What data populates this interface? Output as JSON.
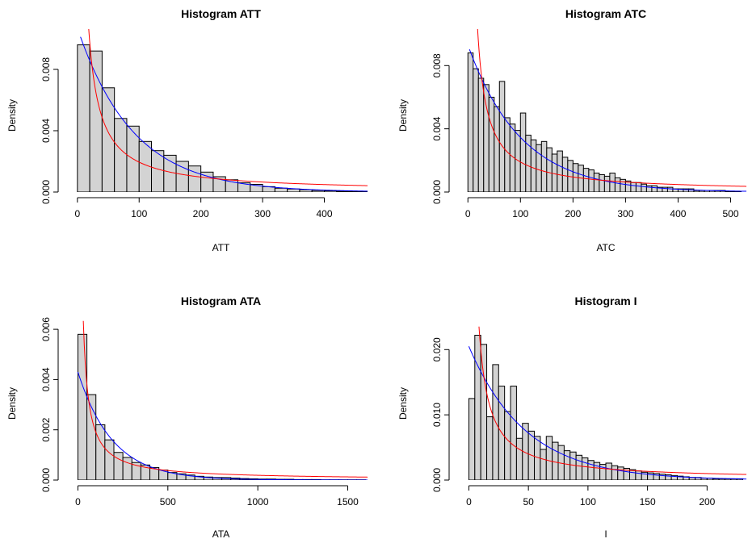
{
  "colors": {
    "bar_fill": "#d3d3d3",
    "bar_stroke": "#000000",
    "fit_blue": "#0000ff",
    "fit_red": "#ff0000"
  },
  "chart_data": [
    {
      "type": "bar",
      "title": "Histogram ATT",
      "xlabel": "ATT",
      "ylabel": "Density",
      "xlim": [
        -5,
        470
      ],
      "ylim": [
        0,
        0.01
      ],
      "xticks": [
        0,
        100,
        200,
        300,
        400
      ],
      "xtick_labels": [
        "0",
        "100",
        "200",
        "300",
        "400"
      ],
      "yticks": [
        0,
        0.004,
        0.008
      ],
      "ytick_labels": [
        "0.000",
        "0.004",
        "0.008"
      ],
      "bin_start": 0,
      "bin_width": 20,
      "values": [
        0.0096,
        0.0092,
        0.0068,
        0.0048,
        0.0043,
        0.0033,
        0.0027,
        0.0024,
        0.002,
        0.0017,
        0.0013,
        0.001,
        0.0008,
        0.0006,
        0.0005,
        0.00035,
        0.00025,
        0.0002,
        0.00015,
        0.0001,
        8e-05,
        5e-05,
        4e-05,
        2e-05
      ],
      "fits": [
        {
          "color": "blue",
          "kind": "exponential",
          "amplitude": 0.0107,
          "rate": 0.0111,
          "x_from": 5,
          "x_to": 470
        },
        {
          "color": "red",
          "kind": "power",
          "amplitude": 0.195,
          "power": 1.0,
          "x_from": 12,
          "x_to": 470
        }
      ]
    },
    {
      "type": "bar",
      "title": "Histogram ATC",
      "xlabel": "ATC",
      "ylabel": "Density",
      "xlim": [
        -5,
        530
      ],
      "ylim": [
        0,
        0.0097
      ],
      "xticks": [
        0,
        100,
        200,
        300,
        400,
        500
      ],
      "xtick_labels": [
        "0",
        "100",
        "200",
        "300",
        "400",
        "500"
      ],
      "yticks": [
        0,
        0.004,
        0.008
      ],
      "ytick_labels": [
        "0.000",
        "0.004",
        "0.008"
      ],
      "bin_start": 0,
      "bin_width": 10,
      "values": [
        0.0088,
        0.0078,
        0.0072,
        0.0068,
        0.006,
        0.0054,
        0.007,
        0.0047,
        0.0043,
        0.0039,
        0.005,
        0.0036,
        0.0033,
        0.003,
        0.0032,
        0.0028,
        0.0024,
        0.0026,
        0.0022,
        0.002,
        0.0018,
        0.0017,
        0.0015,
        0.0014,
        0.0012,
        0.0011,
        0.001,
        0.0012,
        0.0009,
        0.0008,
        0.0007,
        0.0006,
        0.0006,
        0.0005,
        0.0004,
        0.0004,
        0.0003,
        0.0003,
        0.0003,
        0.0002,
        0.0002,
        0.0002,
        0.0002,
        0.0001,
        0.0001,
        0.0001,
        0.0001,
        0.0001,
        0.0001,
        5e-05,
        5e-05,
        5e-05
      ],
      "fits": [
        {
          "color": "blue",
          "kind": "exponential",
          "amplitude": 0.0093,
          "rate": 0.0099,
          "x_from": 3,
          "x_to": 530
        },
        {
          "color": "red",
          "kind": "power",
          "amplitude": 0.19,
          "power": 1.0,
          "x_from": 18,
          "x_to": 530
        }
      ]
    },
    {
      "type": "bar",
      "title": "Histogram ATA",
      "xlabel": "ATA",
      "ylabel": "Density",
      "xlim": [
        -20,
        1610
      ],
      "ylim": [
        0,
        0.0061
      ],
      "xticks": [
        0,
        500,
        1000,
        1500
      ],
      "xtick_labels": [
        "0",
        "500",
        "1000",
        "1500"
      ],
      "yticks": [
        0,
        0.002,
        0.004,
        0.006
      ],
      "ytick_labels": [
        "0.000",
        "0.002",
        "0.004",
        "0.006"
      ],
      "bin_start": 0,
      "bin_width": 50,
      "values": [
        0.0058,
        0.0034,
        0.0022,
        0.0016,
        0.0011,
        0.0009,
        0.0007,
        0.0006,
        0.0005,
        0.0004,
        0.0003,
        0.00025,
        0.0002,
        0.00015,
        0.00012,
        0.0001,
        0.0001,
        8e-05,
        6e-05,
        5e-05,
        4e-05,
        4e-05,
        3e-05,
        3e-05,
        2e-05,
        2e-05,
        2e-05,
        1e-05,
        1e-05,
        1e-05,
        1e-05,
        1e-05
      ],
      "fits": [
        {
          "color": "blue",
          "kind": "exponential",
          "amplitude": 0.0043,
          "rate": 0.0052,
          "x_from": 0,
          "x_to": 1610
        },
        {
          "color": "red",
          "kind": "power",
          "amplitude": 0.19,
          "power": 1.0,
          "x_from": 30,
          "x_to": 1610
        }
      ]
    },
    {
      "type": "bar",
      "title": "Histogram I",
      "xlabel": "I",
      "ylabel": "Density",
      "xlim": [
        -3,
        233
      ],
      "ylim": [
        0,
        0.0235
      ],
      "xticks": [
        0,
        50,
        100,
        150,
        200
      ],
      "xtick_labels": [
        "0",
        "50",
        "100",
        "150",
        "200"
      ],
      "yticks": [
        0,
        0.01,
        0.02
      ],
      "ytick_labels": [
        "0.000",
        "0.010",
        "0.020"
      ],
      "bin_start": 0,
      "bin_width": 5,
      "values": [
        0.0125,
        0.0222,
        0.0208,
        0.0097,
        0.0177,
        0.0144,
        0.0105,
        0.0144,
        0.0064,
        0.0087,
        0.0075,
        0.0067,
        0.0047,
        0.0067,
        0.0058,
        0.0053,
        0.0045,
        0.0043,
        0.0038,
        0.0034,
        0.003,
        0.0027,
        0.0024,
        0.0026,
        0.0022,
        0.002,
        0.0018,
        0.0016,
        0.0014,
        0.0012,
        0.0011,
        0.001,
        0.0009,
        0.0008,
        0.0007,
        0.0006,
        0.0005,
        0.0004,
        0.0004,
        0.0003,
        0.0003,
        0.0002,
        0.0002,
        0.0002,
        0.0002,
        0.0002
      ],
      "fits": [
        {
          "color": "blue",
          "kind": "exponential",
          "amplitude": 0.0205,
          "rate": 0.0209,
          "x_from": 0,
          "x_to": 233
        },
        {
          "color": "red",
          "kind": "power",
          "amplitude": 0.2,
          "power": 1.0,
          "x_from": 8.5,
          "x_to": 233
        }
      ]
    }
  ]
}
